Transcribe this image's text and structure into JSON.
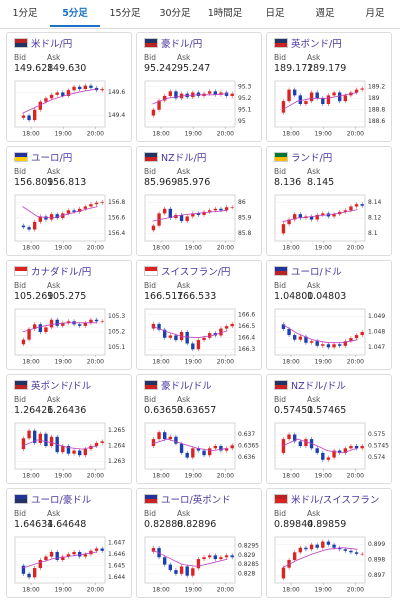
{
  "tabs": {
    "items": [
      "1分足",
      "5分足",
      "15分足",
      "30分足",
      "1時間足",
      "日足",
      "週足",
      "月足"
    ],
    "active": 1
  },
  "cards": [
    {
      "name": "米ドル/円",
      "bid_label": "Bid",
      "ask_label": "Ask",
      "bid": "149.628",
      "ask": "149.630",
      "chart_data": {
        "type": "candlestick",
        "values": [
          149.38,
          149.4,
          149.36,
          149.45,
          149.52,
          149.55,
          149.58,
          149.6,
          149.57,
          149.62,
          149.65,
          149.63,
          149.66,
          149.64,
          149.62,
          149.63
        ],
        "ma": [
          149.42,
          149.48,
          149.54,
          149.58,
          149.61,
          149.63
        ],
        "ylim": [
          149.3,
          149.7
        ],
        "yticks": [
          149.6,
          149.4
        ],
        "xlim": [
          17.5,
          20.3
        ],
        "xticks": [
          {
            "value": 18,
            "label": "18:00"
          },
          {
            "value": 19,
            "label": "19:00"
          },
          {
            "value": 20,
            "label": "20:00"
          }
        ]
      }
    },
    {
      "name": "豪ドル/円",
      "bid_label": "Bid",
      "ask_label": "Ask",
      "bid": "95.242",
      "ask": "95.247",
      "chart_data": {
        "type": "candlestick",
        "values": [
          95.05,
          95.1,
          95.18,
          95.22,
          95.26,
          95.2,
          95.24,
          95.21,
          95.25,
          95.22,
          95.24,
          95.26,
          95.23,
          95.25,
          95.22,
          95.24
        ],
        "ma": [
          95.15,
          95.2,
          95.22,
          95.23,
          95.23,
          95.24
        ],
        "ylim": [
          94.95,
          95.35
        ],
        "yticks": [
          95.3,
          95.2,
          95.1,
          95
        ],
        "xlim": [
          17.5,
          20.3
        ],
        "xticks": [
          {
            "value": 18,
            "label": "18:00"
          },
          {
            "value": 19,
            "label": "19:00"
          },
          {
            "value": 20,
            "label": "20:00"
          }
        ]
      }
    },
    {
      "name": "英ポンド/円",
      "bid_label": "Bid",
      "ask_label": "Ask",
      "bid": "189.172",
      "ask": "189.179",
      "chart_data": {
        "type": "candlestick",
        "values": [
          188.75,
          188.95,
          189.15,
          189.05,
          188.9,
          188.95,
          189.1,
          189.0,
          188.9,
          189.05,
          189.1,
          188.95,
          189.05,
          189.1,
          189.15,
          189.17
        ],
        "ma": [
          188.8,
          188.95,
          189.0,
          189.0,
          189.05,
          189.1
        ],
        "ylim": [
          188.5,
          189.3
        ],
        "yticks": [
          189.2,
          189,
          188.8,
          188.6
        ],
        "xlim": [
          17.5,
          20.3
        ],
        "xticks": [
          {
            "value": 18,
            "label": "18:00"
          },
          {
            "value": 19,
            "label": "19:00"
          },
          {
            "value": 20,
            "label": "20:00"
          }
        ]
      }
    },
    {
      "name": "ユーロ/円",
      "bid_label": "Bid",
      "ask_label": "Ask",
      "bid": "156.809",
      "ask": "156.813",
      "chart_data": {
        "type": "candlestick",
        "values": [
          156.5,
          156.48,
          156.45,
          156.55,
          156.62,
          156.58,
          156.65,
          156.6,
          156.66,
          156.7,
          156.68,
          156.72,
          156.75,
          156.78,
          156.8,
          156.81
        ],
        "ma": [
          156.75,
          156.62,
          156.6,
          156.65,
          156.7,
          156.75
        ],
        "ylim": [
          156.3,
          156.9
        ],
        "yticks": [
          156.8,
          156.6,
          156.4
        ],
        "xlim": [
          17.5,
          20.3
        ],
        "xticks": [
          {
            "value": 18,
            "label": "18:00"
          },
          {
            "value": 19,
            "label": "19:00"
          },
          {
            "value": 20,
            "label": "20:00"
          }
        ]
      }
    },
    {
      "name": "NZドル/円",
      "bid_label": "Bid",
      "ask_label": "Ask",
      "bid": "85.969",
      "ask": "85.976",
      "chart_data": {
        "type": "candlestick",
        "values": [
          85.82,
          85.85,
          85.93,
          85.96,
          85.9,
          85.92,
          85.88,
          85.91,
          85.93,
          85.92,
          85.94,
          85.95,
          85.96,
          85.95,
          85.97,
          85.97
        ],
        "ma": [
          85.88,
          85.9,
          85.92,
          85.93,
          85.94,
          85.95
        ],
        "ylim": [
          85.75,
          86.05
        ],
        "yticks": [
          86,
          85.9,
          85.8
        ],
        "xlim": [
          17.5,
          20.3
        ],
        "xticks": [
          {
            "value": 18,
            "label": "18:00"
          },
          {
            "value": 19,
            "label": "19:00"
          },
          {
            "value": 20,
            "label": "20:00"
          }
        ]
      }
    },
    {
      "name": "ランド/円",
      "bid_label": "Bid",
      "ask_label": "Ask",
      "bid": "8.136",
      "ask": "8.145",
      "chart_data": {
        "type": "candlestick",
        "values": [
          8.1,
          8.112,
          8.118,
          8.125,
          8.12,
          8.122,
          8.118,
          8.124,
          8.126,
          8.122,
          8.125,
          8.128,
          8.13,
          8.135,
          8.138,
          8.136
        ],
        "ma": [
          8.115,
          8.12,
          8.122,
          8.124,
          8.127,
          8.131
        ],
        "ylim": [
          8.09,
          8.15
        ],
        "yticks": [
          8.14,
          8.12,
          8.1
        ],
        "xlim": [
          17.5,
          20.3
        ],
        "xticks": [
          {
            "value": 18,
            "label": "18:00"
          },
          {
            "value": 19,
            "label": "19:00"
          },
          {
            "value": 20,
            "label": "20:00"
          }
        ]
      }
    },
    {
      "name": "カナダドル/円",
      "bid_label": "Bid",
      "ask_label": "Ask",
      "bid": "105.269",
      "ask": "105.275",
      "chart_data": {
        "type": "candlestick",
        "values": [
          105.12,
          105.15,
          105.22,
          105.25,
          105.2,
          105.23,
          105.28,
          105.24,
          105.26,
          105.27,
          105.25,
          105.24,
          105.26,
          105.28,
          105.27,
          105.27
        ],
        "ma": [
          105.2,
          105.23,
          105.25,
          105.26,
          105.26,
          105.26
        ],
        "ylim": [
          105.05,
          105.35
        ],
        "yticks": [
          105.3,
          105.2,
          105.1
        ],
        "xlim": [
          17.5,
          20.3
        ],
        "xticks": [
          {
            "value": 18,
            "label": "18:00"
          },
          {
            "value": 19,
            "label": "19:00"
          },
          {
            "value": 20,
            "label": "20:00"
          }
        ]
      }
    },
    {
      "name": "スイスフラン/円",
      "bid_label": "Bid",
      "ask_label": "Ask",
      "bid": "166.517",
      "ask": "166.533",
      "chart_data": {
        "type": "candlestick",
        "values": [
          166.48,
          166.52,
          166.47,
          166.4,
          166.42,
          166.38,
          166.45,
          166.35,
          166.3,
          166.38,
          166.4,
          166.44,
          166.42,
          166.48,
          166.5,
          166.52
        ],
        "ma": [
          166.5,
          166.45,
          166.41,
          166.4,
          166.42,
          166.46
        ],
        "ylim": [
          166.25,
          166.65
        ],
        "yticks": [
          166.6,
          166.5,
          166.4,
          166.3
        ],
        "xlim": [
          17.5,
          20.3
        ],
        "xticks": [
          {
            "value": 18,
            "label": "18:00"
          },
          {
            "value": 19,
            "label": "19:00"
          },
          {
            "value": 20,
            "label": "20:00"
          }
        ]
      }
    },
    {
      "name": "ユーロ/ドル",
      "bid_label": "Bid",
      "ask_label": "Ask",
      "bid": "1.04800",
      "ask": "1.04803",
      "chart_data": {
        "type": "candlestick",
        "values": [
          1.0485,
          1.0482,
          1.0478,
          1.0475,
          1.0477,
          1.0473,
          1.0474,
          1.0471,
          1.0472,
          1.047,
          1.0472,
          1.0471,
          1.0474,
          1.0476,
          1.0478,
          1.048
        ],
        "ma": [
          1.0485,
          1.0479,
          1.0475,
          1.0473,
          1.0473,
          1.0475
        ],
        "ylim": [
          1.0465,
          1.0495
        ],
        "yticks": [
          1.049,
          1.048,
          1.047
        ],
        "xlim": [
          17.5,
          20.3
        ],
        "xticks": [
          {
            "value": 18,
            "label": "18:00"
          },
          {
            "value": 19,
            "label": "19:00"
          },
          {
            "value": 20,
            "label": "20:00"
          }
        ]
      }
    },
    {
      "name": "英ポンド/ドル",
      "bid_label": "Bid",
      "ask_label": "Ask",
      "bid": "1.26426",
      "ask": "1.26436",
      "chart_data": {
        "type": "candlestick",
        "values": [
          1.2638,
          1.2645,
          1.265,
          1.2642,
          1.2648,
          1.264,
          1.2646,
          1.2636,
          1.264,
          1.2635,
          1.2637,
          1.2634,
          1.2638,
          1.264,
          1.2642,
          1.2643
        ],
        "ma": [
          1.264,
          1.2644,
          1.2642,
          1.2639,
          1.2638,
          1.264
        ],
        "ylim": [
          1.2625,
          1.2655
        ],
        "yticks": [
          1.265,
          1.264,
          1.263
        ],
        "xlim": [
          17.5,
          20.3
        ],
        "xticks": [
          {
            "value": 18,
            "label": "18:00"
          },
          {
            "value": 19,
            "label": "19:00"
          },
          {
            "value": 20,
            "label": "20:00"
          }
        ]
      }
    },
    {
      "name": "豪ドル/ドル",
      "bid_label": "Bid",
      "ask_label": "Ask",
      "bid": "0.63653",
      "ask": "0.63657",
      "chart_data": {
        "type": "candlestick",
        "values": [
          0.6365,
          0.6368,
          0.6371,
          0.6368,
          0.6369,
          0.6366,
          0.6362,
          0.636,
          0.6364,
          0.6363,
          0.6361,
          0.6364,
          0.6365,
          0.6363,
          0.6364,
          0.63653
        ],
        "ma": [
          0.6366,
          0.6368,
          0.6366,
          0.6364,
          0.6363,
          0.6364
        ],
        "ylim": [
          0.6355,
          0.6375
        ],
        "yticks": [
          0.637,
          0.6365,
          0.636
        ],
        "xlim": [
          17.5,
          20.3
        ],
        "xticks": [
          {
            "value": 18,
            "label": "18:00"
          },
          {
            "value": 19,
            "label": "19:00"
          },
          {
            "value": 20,
            "label": "20:00"
          }
        ]
      }
    },
    {
      "name": "NZドル/ドル",
      "bid_label": "Bid",
      "ask_label": "Ask",
      "bid": "0.57451",
      "ask": "0.57465",
      "chart_data": {
        "type": "candlestick",
        "values": [
          0.5742,
          0.5748,
          0.575,
          0.5747,
          0.5745,
          0.5748,
          0.5744,
          0.5742,
          0.5739,
          0.574,
          0.5743,
          0.5742,
          0.5744,
          0.5745,
          0.5744,
          0.5745
        ],
        "ma": [
          0.5745,
          0.5748,
          0.5746,
          0.5743,
          0.5742,
          0.5744
        ],
        "ylim": [
          0.5735,
          0.5755
        ],
        "yticks": [
          0.575,
          0.5745,
          0.574
        ],
        "xlim": [
          17.5,
          20.3
        ],
        "xticks": [
          {
            "value": 18,
            "label": "18:00"
          },
          {
            "value": 19,
            "label": "19:00"
          },
          {
            "value": 20,
            "label": "20:00"
          }
        ]
      }
    },
    {
      "name": "ユーロ/豪ドル",
      "bid_label": "Bid",
      "ask_label": "Ask",
      "bid": "1.64634",
      "ask": "1.64648",
      "chart_data": {
        "type": "candlestick",
        "values": [
          1.645,
          1.6443,
          1.644,
          1.6448,
          1.6455,
          1.6458,
          1.6462,
          1.6455,
          1.6458,
          1.646,
          1.6462,
          1.6458,
          1.646,
          1.6463,
          1.6465,
          1.6463
        ],
        "ma": [
          1.6448,
          1.6452,
          1.6456,
          1.6458,
          1.646,
          1.6462
        ],
        "ylim": [
          1.6435,
          1.6475
        ],
        "yticks": [
          1.647,
          1.646,
          1.645,
          1.644
        ],
        "xlim": [
          17.5,
          20.3
        ],
        "xticks": [
          {
            "value": 18,
            "label": "18:00"
          },
          {
            "value": 19,
            "label": "19:00"
          },
          {
            "value": 20,
            "label": "20:00"
          }
        ]
      }
    },
    {
      "name": "ユーロ/英ポンド",
      "bid_label": "Bid",
      "ask_label": "Ask",
      "bid": "0.82888",
      "ask": "0.82896",
      "chart_data": {
        "type": "candlestick",
        "values": [
          0.8292,
          0.8294,
          0.8289,
          0.8285,
          0.8282,
          0.828,
          0.8284,
          0.8279,
          0.8283,
          0.8288,
          0.8289,
          0.829,
          0.8288,
          0.8289,
          0.829,
          0.8289
        ],
        "ma": [
          0.8293,
          0.8289,
          0.8285,
          0.8284,
          0.8286,
          0.8288
        ],
        "ylim": [
          0.8275,
          0.83
        ],
        "yticks": [
          0.8295,
          0.829,
          0.8285,
          0.828
        ],
        "xlim": [
          17.5,
          20.3
        ],
        "xticks": [
          {
            "value": 18,
            "label": "18:00"
          },
          {
            "value": 19,
            "label": "19:00"
          },
          {
            "value": 20,
            "label": "20:00"
          }
        ]
      }
    },
    {
      "name": "米ドル/スイスフラン",
      "bid_label": "Bid",
      "ask_label": "Ask",
      "bid": "0.89844",
      "ask": "0.89859",
      "chart_data": {
        "type": "candlestick",
        "values": [
          0.8968,
          0.8975,
          0.898,
          0.8985,
          0.8988,
          0.8987,
          0.899,
          0.8988,
          0.8992,
          0.899,
          0.8988,
          0.8987,
          0.8986,
          0.8985,
          0.8984,
          0.8984
        ],
        "ma": [
          0.8975,
          0.898,
          0.8984,
          0.8987,
          0.8988,
          0.8987
        ],
        "ylim": [
          0.8965,
          0.8995
        ],
        "yticks": [
          0.899,
          0.898,
          0.897
        ],
        "xlim": [
          17.5,
          20.3
        ],
        "xticks": [
          {
            "value": 18,
            "label": "18:00"
          },
          {
            "value": 19,
            "label": "19:00"
          },
          {
            "value": 20,
            "label": "20:00"
          }
        ]
      }
    }
  ]
}
